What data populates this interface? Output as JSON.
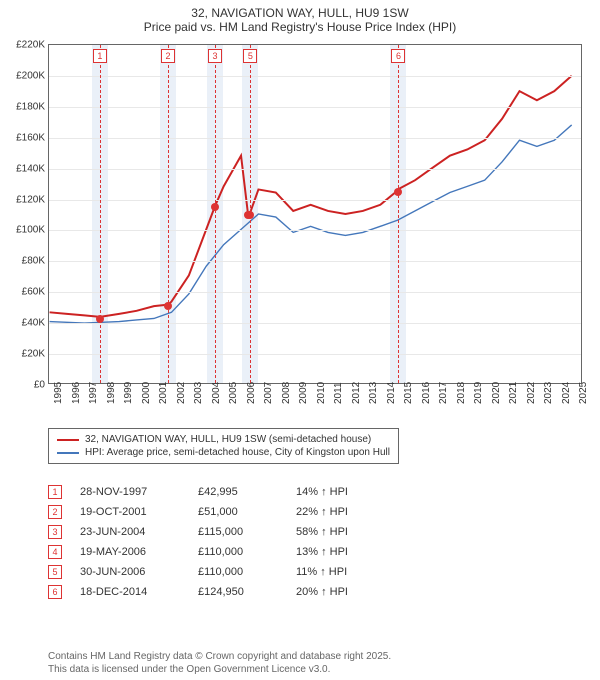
{
  "title_line1": "32, NAVIGATION WAY, HULL, HU9 1SW",
  "title_line2": "Price paid vs. HM Land Registry's House Price Index (HPI)",
  "chart": {
    "type": "line",
    "x_years": [
      1995,
      1996,
      1997,
      1998,
      1999,
      2000,
      2001,
      2002,
      2003,
      2004,
      2005,
      2006,
      2007,
      2008,
      2009,
      2010,
      2011,
      2012,
      2013,
      2014,
      2015,
      2016,
      2017,
      2018,
      2019,
      2020,
      2021,
      2022,
      2023,
      2024,
      2025
    ],
    "xlim": [
      1995,
      2025.5
    ],
    "ylim": [
      0,
      220000
    ],
    "ytick_step": 20000,
    "yticks": [
      "£0",
      "£20K",
      "£40K",
      "£60K",
      "£80K",
      "£100K",
      "£120K",
      "£140K",
      "£160K",
      "£180K",
      "£200K",
      "£220K"
    ],
    "grid_color": "#e8e8e8",
    "shade_color": "#eaf0f8",
    "series_property": {
      "label": "32, NAVIGATION WAY, HULL, HU9 1SW (semi-detached house)",
      "color": "#cc2222",
      "width": 2,
      "points": [
        [
          1995,
          46000
        ],
        [
          1996,
          45000
        ],
        [
          1997,
          44000
        ],
        [
          1997.9,
          43000
        ],
        [
          1999,
          45000
        ],
        [
          2000,
          47000
        ],
        [
          2001,
          50000
        ],
        [
          2001.8,
          51000
        ],
        [
          2002,
          53000
        ],
        [
          2003,
          70000
        ],
        [
          2004,
          100000
        ],
        [
          2004.5,
          115000
        ],
        [
          2005,
          128000
        ],
        [
          2006,
          148000
        ],
        [
          2006.4,
          110000
        ],
        [
          2006.5,
          110000
        ],
        [
          2007,
          126000
        ],
        [
          2008,
          124000
        ],
        [
          2009,
          112000
        ],
        [
          2010,
          116000
        ],
        [
          2011,
          112000
        ],
        [
          2012,
          110000
        ],
        [
          2013,
          112000
        ],
        [
          2014,
          116000
        ],
        [
          2014.96,
          124950
        ],
        [
          2015,
          126000
        ],
        [
          2016,
          132000
        ],
        [
          2017,
          140000
        ],
        [
          2018,
          148000
        ],
        [
          2019,
          152000
        ],
        [
          2020,
          158000
        ],
        [
          2021,
          172000
        ],
        [
          2022,
          190000
        ],
        [
          2023,
          184000
        ],
        [
          2024,
          190000
        ],
        [
          2025,
          200000
        ]
      ]
    },
    "series_hpi": {
      "label": "HPI: Average price, semi-detached house, City of Kingston upon Hull",
      "color": "#4477bb",
      "width": 1.4,
      "points": [
        [
          1995,
          40000
        ],
        [
          1996,
          39500
        ],
        [
          1997,
          39000
        ],
        [
          1998,
          39500
        ],
        [
          1999,
          40000
        ],
        [
          2000,
          41000
        ],
        [
          2001,
          42000
        ],
        [
          2002,
          46000
        ],
        [
          2003,
          58000
        ],
        [
          2004,
          76000
        ],
        [
          2005,
          90000
        ],
        [
          2006,
          100000
        ],
        [
          2007,
          110000
        ],
        [
          2008,
          108000
        ],
        [
          2009,
          98000
        ],
        [
          2010,
          102000
        ],
        [
          2011,
          98000
        ],
        [
          2012,
          96000
        ],
        [
          2013,
          98000
        ],
        [
          2014,
          102000
        ],
        [
          2015,
          106000
        ],
        [
          2016,
          112000
        ],
        [
          2017,
          118000
        ],
        [
          2018,
          124000
        ],
        [
          2019,
          128000
        ],
        [
          2020,
          132000
        ],
        [
          2021,
          144000
        ],
        [
          2022,
          158000
        ],
        [
          2023,
          154000
        ],
        [
          2024,
          158000
        ],
        [
          2025,
          168000
        ]
      ]
    },
    "sale_markers": [
      {
        "n": "1",
        "year": 1997.91
      },
      {
        "n": "2",
        "year": 2001.8
      },
      {
        "n": "3",
        "year": 2004.48
      },
      {
        "n": "5",
        "year": 2006.5
      },
      {
        "n": "6",
        "year": 2014.96
      }
    ],
    "sale_points": [
      {
        "year": 1997.91,
        "price": 42995
      },
      {
        "year": 2001.8,
        "price": 51000
      },
      {
        "year": 2004.48,
        "price": 115000
      },
      {
        "year": 2006.38,
        "price": 110000
      },
      {
        "year": 2006.5,
        "price": 110000
      },
      {
        "year": 2014.96,
        "price": 124950
      }
    ]
  },
  "legend": {
    "items": [
      {
        "color": "#cc2222",
        "label": "32, NAVIGATION WAY, HULL, HU9 1SW (semi-detached house)"
      },
      {
        "color": "#4477bb",
        "label": "HPI: Average price, semi-detached house, City of Kingston upon Hull"
      }
    ]
  },
  "sales": [
    {
      "n": "1",
      "date": "28-NOV-1997",
      "price": "£42,995",
      "diff": "14% ↑ HPI"
    },
    {
      "n": "2",
      "date": "19-OCT-2001",
      "price": "£51,000",
      "diff": "22% ↑ HPI"
    },
    {
      "n": "3",
      "date": "23-JUN-2004",
      "price": "£115,000",
      "diff": "58% ↑ HPI"
    },
    {
      "n": "4",
      "date": "19-MAY-2006",
      "price": "£110,000",
      "diff": "13% ↑ HPI"
    },
    {
      "n": "5",
      "date": "30-JUN-2006",
      "price": "£110,000",
      "diff": "11% ↑ HPI"
    },
    {
      "n": "6",
      "date": "18-DEC-2014",
      "price": "£124,950",
      "diff": "20% ↑ HPI"
    }
  ],
  "footer_line1": "Contains HM Land Registry data © Crown copyright and database right 2025.",
  "footer_line2": "This data is licensed under the Open Government Licence v3.0."
}
